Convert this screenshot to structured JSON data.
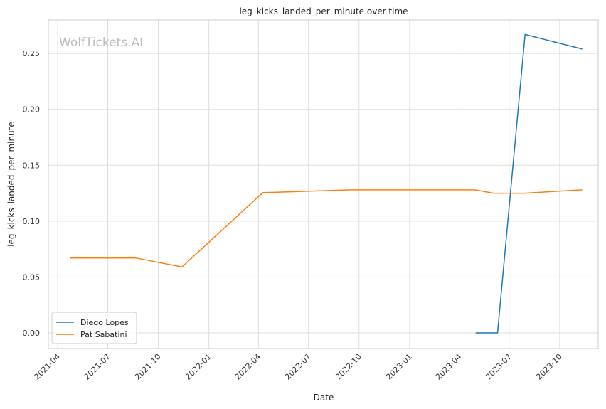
{
  "chart_data": {
    "type": "line",
    "title": "leg_kicks_landed_per_minute over time",
    "xlabel": "Date",
    "ylabel": "leg_kicks_landed_per_minute",
    "watermark": "WolfTickets.AI",
    "x_range": [
      "2021-03-15",
      "2023-12-10"
    ],
    "ylim": [
      -0.014,
      0.28
    ],
    "x_ticks": [
      "2021-04",
      "2021-07",
      "2021-10",
      "2022-01",
      "2022-04",
      "2022-07",
      "2022-10",
      "2023-01",
      "2023-04",
      "2023-07",
      "2023-10"
    ],
    "y_ticks": [
      "0.00",
      "0.05",
      "0.10",
      "0.15",
      "0.20",
      "0.25"
    ],
    "grid": true,
    "legend_position": "lower-left",
    "series": [
      {
        "name": "Diego Lopes",
        "color": "#1f77b4",
        "points": [
          {
            "x": "2023-05-01",
            "y": 0.0
          },
          {
            "x": "2023-06-10",
            "y": 0.0
          },
          {
            "x": "2023-07-30",
            "y": 0.267
          },
          {
            "x": "2023-11-11",
            "y": 0.254
          }
        ]
      },
      {
        "name": "Pat Sabatini",
        "color": "#ff7f0e",
        "points": [
          {
            "x": "2021-04-24",
            "y": 0.067
          },
          {
            "x": "2021-08-21",
            "y": 0.067
          },
          {
            "x": "2021-11-13",
            "y": 0.059
          },
          {
            "x": "2022-04-09",
            "y": 0.1255
          },
          {
            "x": "2022-09-17",
            "y": 0.128
          },
          {
            "x": "2023-04-29",
            "y": 0.128
          },
          {
            "x": "2023-06-03",
            "y": 0.125
          },
          {
            "x": "2023-07-29",
            "y": 0.125
          },
          {
            "x": "2023-11-11",
            "y": 0.128
          }
        ]
      }
    ]
  }
}
